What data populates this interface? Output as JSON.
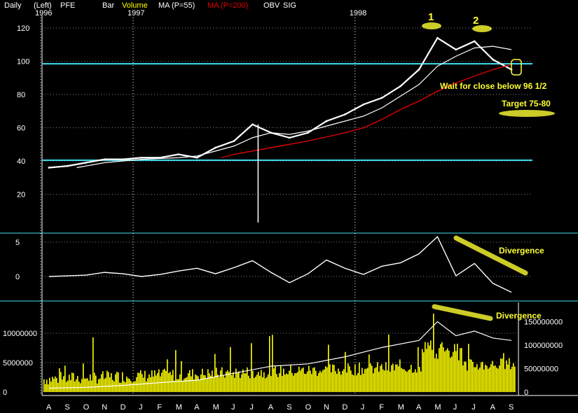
{
  "header": {
    "daily": "Daily",
    "left": "(Left)",
    "symbol": "PFE",
    "bar": "Bar",
    "volume": "Volume",
    "ma55": "MA (P=55)",
    "ma200": "MA (P=200)",
    "obv": "OBV",
    "sig": "SIG"
  },
  "colors": {
    "price": "#ffffff",
    "ma55": "#ffffff",
    "ma200": "#e00000",
    "support": "#40e0f0",
    "volume": "#ffff00",
    "highlight": "#ffff33",
    "grid": "#ffffff"
  },
  "annotations": {
    "peak1": "1",
    "peak2": "2",
    "wait": "Wait for close below 96 1/2",
    "target": "Target 75-80",
    "divergence": "Divergence"
  },
  "chart_data": [
    {
      "type": "line",
      "name": "price",
      "x_months": [
        "A",
        "S",
        "O",
        "N",
        "D",
        "J",
        "F",
        "M",
        "A",
        "M",
        "J",
        "J",
        "A",
        "S",
        "O",
        "N",
        "D",
        "J",
        "F",
        "M",
        "A",
        "M",
        "J",
        "J",
        "A",
        "S"
      ],
      "years": [
        {
          "label": "1996",
          "month_index": 0
        },
        {
          "label": "1997",
          "month_index": 5
        },
        {
          "label": "1998",
          "month_index": 17
        }
      ],
      "ylim": [
        0,
        125
      ],
      "yticks": [
        20,
        40,
        60,
        80,
        100,
        120
      ],
      "support_lines": [
        40.5,
        98.5
      ],
      "series": [
        {
          "name": "PFE",
          "points": [
            [
              0,
              36
            ],
            [
              1,
              37
            ],
            [
              2,
              39
            ],
            [
              3,
              41
            ],
            [
              4,
              41
            ],
            [
              5,
              42
            ],
            [
              6,
              42
            ],
            [
              7,
              44
            ],
            [
              8,
              42
            ],
            [
              9,
              48
            ],
            [
              10,
              52
            ],
            [
              11,
              62
            ],
            [
              12,
              57
            ],
            [
              13,
              54
            ],
            [
              14,
              57
            ],
            [
              15,
              64
            ],
            [
              16,
              68
            ],
            [
              17,
              74
            ],
            [
              18,
              78
            ],
            [
              19,
              85
            ],
            [
              20,
              95
            ],
            [
              21,
              114
            ],
            [
              22,
              107
            ],
            [
              23,
              112
            ],
            [
              24,
              101
            ],
            [
              25,
              95
            ]
          ]
        },
        {
          "name": "MA (P=55)",
          "points": [
            [
              1.5,
              36
            ],
            [
              3,
              39
            ],
            [
              5,
              41
            ],
            [
              7,
              42
            ],
            [
              8,
              43
            ],
            [
              9,
              46
            ],
            [
              10,
              49
            ],
            [
              11,
              54
            ],
            [
              12,
              57
            ],
            [
              13,
              56
            ],
            [
              14,
              58
            ],
            [
              15,
              61
            ],
            [
              16,
              64
            ],
            [
              17,
              67
            ],
            [
              18,
              72
            ],
            [
              19,
              79
            ],
            [
              20,
              86
            ],
            [
              21,
              97
            ],
            [
              22,
              103
            ],
            [
              23,
              108
            ],
            [
              24,
              109
            ],
            [
              25,
              107
            ]
          ]
        },
        {
          "name": "MA (P=200)",
          "points": [
            [
              9.3,
              42
            ],
            [
              10,
              44
            ],
            [
              12,
              48
            ],
            [
              14,
              52
            ],
            [
              16,
              57
            ],
            [
              17,
              60
            ],
            [
              18,
              65
            ],
            [
              19,
              71
            ],
            [
              20,
              76
            ],
            [
              21,
              82
            ],
            [
              22,
              87
            ],
            [
              23,
              91
            ],
            [
              24,
              95
            ],
            [
              25,
              98
            ]
          ]
        }
      ]
    },
    {
      "type": "line",
      "name": "oscillator",
      "yticks": [
        0,
        5
      ],
      "ylim": [
        -3,
        6
      ],
      "values": [
        [
          0,
          0
        ],
        [
          1,
          0.1
        ],
        [
          2,
          0.2
        ],
        [
          3,
          0.6
        ],
        [
          4,
          0.4
        ],
        [
          5,
          0
        ],
        [
          6,
          0.3
        ],
        [
          7,
          0.8
        ],
        [
          8,
          1.2
        ],
        [
          9,
          0.4
        ],
        [
          10,
          1.3
        ],
        [
          11,
          2.3
        ],
        [
          12,
          0.6
        ],
        [
          13,
          -0.9
        ],
        [
          14,
          0.4
        ],
        [
          15,
          2.4
        ],
        [
          16,
          1.2
        ],
        [
          17,
          0.3
        ],
        [
          18,
          1.5
        ],
        [
          19,
          2.0
        ],
        [
          20,
          3.3
        ],
        [
          21,
          5.8
        ],
        [
          22,
          0.1
        ],
        [
          23,
          1.9
        ],
        [
          24,
          -1.0
        ],
        [
          25,
          -2.3
        ]
      ]
    },
    {
      "type": "bar",
      "name": "volume",
      "yticks_left": [
        0,
        5000000,
        10000000
      ],
      "yticks_right": [
        0,
        50000000,
        100000000,
        150000000
      ],
      "ylim_left": [
        0,
        15000000
      ],
      "ylim_right": [
        0,
        180000000
      ],
      "obv": [
        [
          0,
          8000000
        ],
        [
          2,
          10000000
        ],
        [
          4,
          14000000
        ],
        [
          6,
          20000000
        ],
        [
          8,
          25000000
        ],
        [
          10,
          40000000
        ],
        [
          12,
          55000000
        ],
        [
          14,
          60000000
        ],
        [
          16,
          75000000
        ],
        [
          18,
          95000000
        ],
        [
          20,
          110000000
        ],
        [
          21,
          150000000
        ],
        [
          22,
          120000000
        ],
        [
          23,
          130000000
        ],
        [
          24,
          115000000
        ],
        [
          25,
          110000000
        ]
      ]
    }
  ]
}
